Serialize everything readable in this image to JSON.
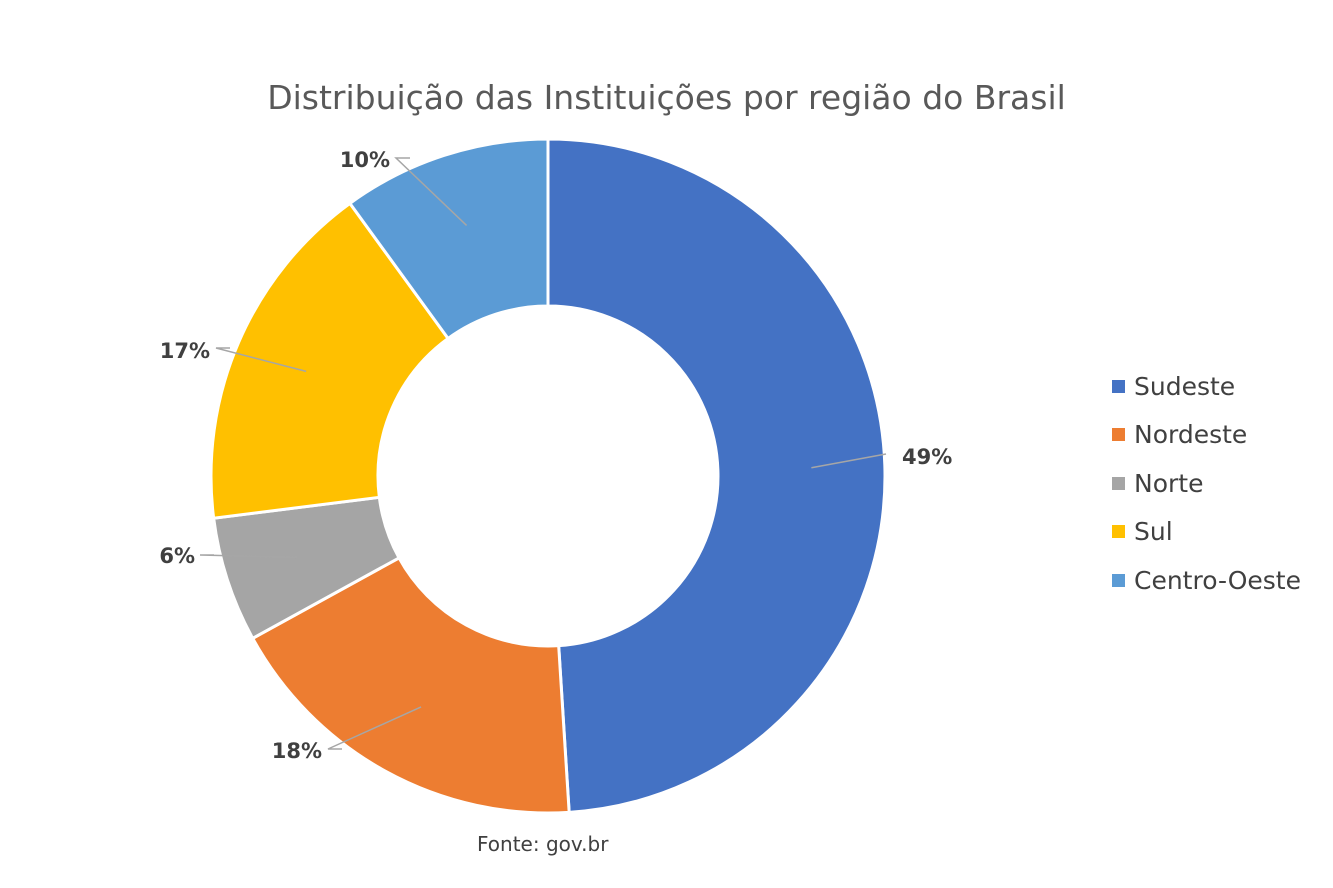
{
  "chart_data": {
    "type": "pie",
    "subtype": "donut",
    "title": "Distribuição das Instituições por região do Brasil",
    "categories": [
      "Sudeste",
      "Nordeste",
      "Norte",
      "Sul",
      "Centro-Oeste"
    ],
    "values": [
      49,
      18,
      6,
      17,
      10
    ],
    "value_labels": [
      "49%",
      "18%",
      "6%",
      "17%",
      "10%"
    ],
    "colors": [
      "#4472C4",
      "#ED7D31",
      "#A5A5A5",
      "#FFC000",
      "#5B9BD5"
    ],
    "legend_position": "right",
    "source": "Fonte: gov.br"
  }
}
